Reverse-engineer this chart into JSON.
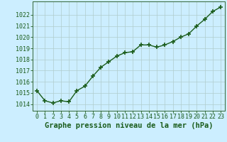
{
  "x": [
    0,
    1,
    2,
    3,
    4,
    5,
    6,
    7,
    8,
    9,
    10,
    11,
    12,
    13,
    14,
    15,
    16,
    17,
    18,
    19,
    20,
    21,
    22,
    23
  ],
  "y": [
    1015.2,
    1014.3,
    1014.1,
    1014.3,
    1014.2,
    1015.2,
    1015.6,
    1016.5,
    1017.3,
    1017.8,
    1018.3,
    1018.6,
    1018.7,
    1019.3,
    1019.3,
    1019.1,
    1019.3,
    1019.6,
    1020.0,
    1020.3,
    1021.0,
    1021.6,
    1022.3,
    1022.7
  ],
  "line_color": "#1a5c1a",
  "marker": "+",
  "marker_size": 4,
  "marker_lw": 1.2,
  "line_width": 1.0,
  "bg_color": "#cceeff",
  "grid_color": "#b0cccc",
  "xlabel": "Graphe pression niveau de la mer (hPa)",
  "xlabel_color": "#1a5c1a",
  "xlabel_fontsize": 7.5,
  "xtick_labels": [
    "0",
    "1",
    "2",
    "3",
    "4",
    "5",
    "6",
    "7",
    "8",
    "9",
    "10",
    "11",
    "12",
    "13",
    "14",
    "15",
    "16",
    "17",
    "18",
    "19",
    "20",
    "21",
    "22",
    "23"
  ],
  "ytick_min": 1014,
  "ytick_max": 1022,
  "ytick_step": 1,
  "ylim": [
    1013.4,
    1023.2
  ],
  "xlim": [
    -0.5,
    23.5
  ],
  "tick_color": "#1a5c1a",
  "tick_fontsize": 6.0,
  "spine_color": "#336633"
}
